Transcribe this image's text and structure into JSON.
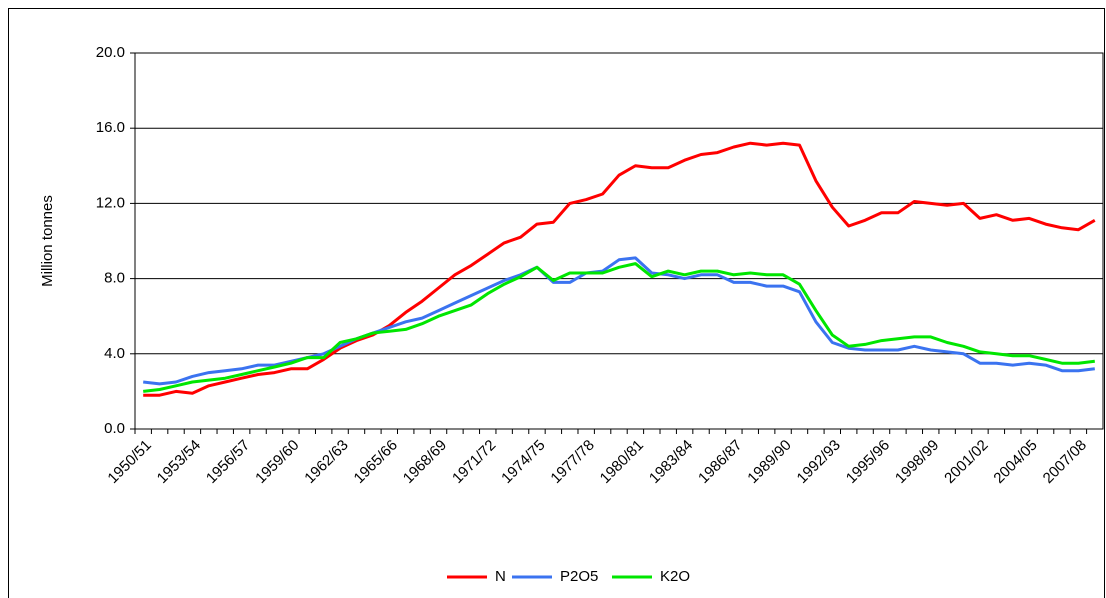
{
  "chart_data": {
    "type": "line",
    "y_label": "Million tonnes",
    "categories": [
      "1950/51",
      null,
      null,
      "1953/54",
      null,
      null,
      "1956/57",
      null,
      null,
      "1959/60",
      null,
      null,
      "1962/63",
      null,
      null,
      "1965/66",
      null,
      null,
      "1968/69",
      null,
      null,
      "1971/72",
      null,
      null,
      "1974/75",
      null,
      null,
      "1977/78",
      null,
      null,
      "1980/81",
      null,
      null,
      "1983/84",
      null,
      null,
      "1986/87",
      null,
      null,
      "1989/90",
      null,
      null,
      "1992/93",
      null,
      null,
      "1995/96",
      null,
      null,
      "1998/99",
      null,
      null,
      "2001/02",
      null,
      null,
      "2004/05",
      null,
      null,
      "2007/08",
      null
    ],
    "series": [
      {
        "name": "N",
        "color": "#ff0000",
        "values": [
          1.8,
          1.8,
          2.0,
          1.9,
          2.3,
          2.5,
          2.7,
          2.9,
          3.0,
          3.2,
          3.2,
          3.7,
          4.3,
          4.7,
          5.0,
          5.5,
          6.2,
          6.8,
          7.5,
          8.2,
          8.7,
          9.3,
          9.9,
          10.2,
          10.9,
          11.0,
          12.0,
          12.2,
          12.5,
          13.5,
          14.0,
          13.9,
          13.9,
          14.3,
          14.6,
          14.7,
          15.0,
          15.2,
          15.1,
          15.2,
          15.1,
          13.2,
          11.8,
          10.8,
          11.1,
          11.5,
          11.5,
          12.1,
          12.0,
          11.9,
          12.0,
          11.2,
          11.4,
          11.1,
          11.2,
          10.9,
          10.7,
          10.6,
          11.1
        ]
      },
      {
        "name": "P2O5",
        "color": "#3b73f0",
        "values": [
          2.5,
          2.4,
          2.5,
          2.8,
          3.0,
          3.1,
          3.2,
          3.4,
          3.4,
          3.6,
          3.8,
          4.0,
          4.4,
          4.8,
          5.1,
          5.4,
          5.7,
          5.9,
          6.3,
          6.7,
          7.1,
          7.5,
          7.9,
          8.2,
          8.6,
          7.8,
          7.8,
          8.3,
          8.4,
          9.0,
          9.1,
          8.3,
          8.2,
          8.0,
          8.2,
          8.2,
          7.8,
          7.8,
          7.6,
          7.6,
          7.3,
          5.7,
          4.6,
          4.3,
          4.2,
          4.2,
          4.2,
          4.4,
          4.2,
          4.1,
          4.0,
          3.5,
          3.5,
          3.4,
          3.5,
          3.4,
          3.1,
          3.1,
          3.2
        ]
      },
      {
        "name": "K2O",
        "color": "#00e600",
        "values": [
          2.0,
          2.1,
          2.3,
          2.5,
          2.6,
          2.7,
          2.9,
          3.1,
          3.3,
          3.5,
          3.8,
          3.8,
          4.6,
          4.8,
          5.1,
          5.2,
          5.3,
          5.6,
          6.0,
          6.3,
          6.6,
          7.2,
          7.7,
          8.1,
          8.6,
          7.9,
          8.3,
          8.3,
          8.3,
          8.6,
          8.8,
          8.1,
          8.4,
          8.2,
          8.4,
          8.4,
          8.2,
          8.3,
          8.2,
          8.2,
          7.7,
          6.3,
          5.0,
          4.4,
          4.5,
          4.7,
          4.8,
          4.9,
          4.9,
          4.6,
          4.4,
          4.1,
          4.0,
          3.9,
          3.9,
          3.7,
          3.5,
          3.5,
          3.6
        ]
      }
    ],
    "ylim": [
      0,
      20
    ],
    "yticks": [
      {
        "value": 0,
        "label": "0.0"
      },
      {
        "value": 4,
        "label": "4.0"
      },
      {
        "value": 8,
        "label": "8.0"
      },
      {
        "value": 12,
        "label": "12.0"
      },
      {
        "value": 16,
        "label": "16.0"
      },
      {
        "value": 20,
        "label": "20.0"
      }
    ],
    "grid": true,
    "legend": "bottom"
  }
}
